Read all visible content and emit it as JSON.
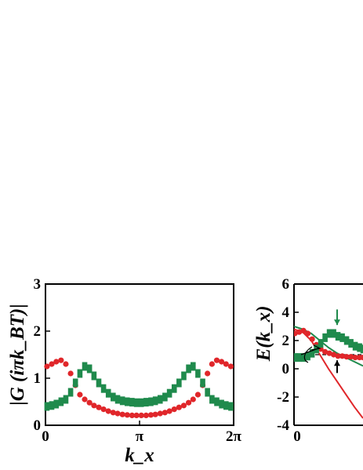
{
  "colors": {
    "red": "#e0262a",
    "green": "#1f8a4c",
    "axis": "#000000"
  },
  "chart_data": [
    {
      "type": "scatter",
      "title": "",
      "xlabel": "k_x",
      "ylabel": "|G (iπk_BT)|",
      "xlim": [
        0,
        6.2832
      ],
      "ylim": [
        0,
        3
      ],
      "grid": false,
      "x_ticks": [
        {
          "value": 0,
          "label": "0"
        },
        {
          "value": 3.1416,
          "label": "π"
        },
        {
          "value": 6.2832,
          "label": "2π"
        }
      ],
      "y_ticks": [
        {
          "value": 0,
          "label": "0"
        },
        {
          "value": 1,
          "label": "1"
        },
        {
          "value": 2,
          "label": "2"
        },
        {
          "value": 3,
          "label": "3"
        }
      ],
      "series": [
        {
          "color": "red",
          "marker": "circle",
          "x": [
            0.05,
            0.21,
            0.36,
            0.52,
            0.68,
            0.84,
            1.0,
            1.15,
            1.31,
            1.47,
            1.62,
            1.78,
            1.94,
            2.1,
            2.26,
            2.41,
            2.57,
            2.73,
            2.89,
            3.04,
            3.2,
            3.36,
            3.52,
            3.67,
            3.83,
            3.99,
            4.14,
            4.3,
            4.46,
            4.62,
            4.78,
            4.93,
            5.09,
            5.25,
            5.41,
            5.56,
            5.72,
            5.88,
            6.03,
            6.19
          ],
          "y": [
            1.25,
            1.3,
            1.35,
            1.38,
            1.3,
            1.1,
            0.85,
            0.65,
            0.55,
            0.48,
            0.42,
            0.38,
            0.34,
            0.3,
            0.27,
            0.25,
            0.23,
            0.22,
            0.21,
            0.21,
            0.21,
            0.21,
            0.22,
            0.23,
            0.25,
            0.27,
            0.3,
            0.34,
            0.38,
            0.42,
            0.48,
            0.55,
            0.65,
            0.85,
            1.1,
            1.3,
            1.38,
            1.35,
            1.3,
            1.25
          ]
        },
        {
          "color": "green",
          "marker": "square",
          "x": [
            0.05,
            0.21,
            0.36,
            0.52,
            0.68,
            0.84,
            1.0,
            1.15,
            1.31,
            1.47,
            1.62,
            1.78,
            1.94,
            2.1,
            2.26,
            2.41,
            2.57,
            2.73,
            2.89,
            3.04,
            3.2,
            3.36,
            3.52,
            3.67,
            3.83,
            3.99,
            4.14,
            4.3,
            4.46,
            4.62,
            4.78,
            4.93,
            5.09,
            5.25,
            5.41,
            5.56,
            5.72,
            5.88,
            6.03,
            6.19
          ],
          "y": [
            0.4,
            0.42,
            0.45,
            0.5,
            0.55,
            0.7,
            0.9,
            1.1,
            1.25,
            1.2,
            1.05,
            0.9,
            0.78,
            0.68,
            0.6,
            0.55,
            0.52,
            0.5,
            0.49,
            0.48,
            0.48,
            0.49,
            0.5,
            0.52,
            0.55,
            0.6,
            0.68,
            0.78,
            0.9,
            1.05,
            1.2,
            1.25,
            1.1,
            0.9,
            0.7,
            0.55,
            0.5,
            0.45,
            0.42,
            0.4
          ]
        }
      ]
    },
    {
      "type": "line",
      "title": "",
      "xlabel": "",
      "ylabel": "E(k_x)",
      "xlim": [
        0,
        1.6
      ],
      "ylim": [
        -4,
        6
      ],
      "grid": false,
      "x_ticks": [
        {
          "value": 0,
          "label": "0"
        }
      ],
      "y_ticks": [
        {
          "value": 6,
          "label": "6"
        },
        {
          "value": 4,
          "label": "4"
        },
        {
          "value": 2,
          "label": "2"
        },
        {
          "value": 0,
          "label": "0"
        },
        {
          "value": -2,
          "label": "-2"
        },
        {
          "value": -4,
          "label": "-4"
        }
      ],
      "reference_line": {
        "y": 1.0,
        "style": "dashed"
      },
      "lines": [
        {
          "color": "green",
          "x": [
            0.0,
            0.2,
            0.4,
            0.6,
            0.8,
            1.0,
            1.2,
            1.4,
            1.6
          ],
          "y": [
            3.0,
            2.8,
            2.5,
            2.0,
            1.5,
            1.1,
            0.8,
            0.5,
            0.2
          ]
        },
        {
          "color": "red",
          "x": [
            0.0,
            0.2,
            0.4,
            0.6,
            0.8,
            1.0,
            1.2,
            1.4,
            1.6
          ],
          "y": [
            2.8,
            2.6,
            2.0,
            1.0,
            0.0,
            -0.9,
            -1.8,
            -2.7,
            -3.5
          ]
        }
      ],
      "series": [
        {
          "color": "red",
          "marker": "circle",
          "x": [
            0.02,
            0.12,
            0.22,
            0.32,
            0.42,
            0.52,
            0.62,
            0.72,
            0.82,
            0.92,
            1.02,
            1.12,
            1.22,
            1.32,
            1.42,
            1.52,
            1.6
          ],
          "y": [
            2.5,
            2.6,
            2.7,
            2.5,
            2.1,
            1.7,
            1.4,
            1.2,
            1.1,
            1.0,
            0.9,
            0.9,
            0.85,
            0.85,
            0.8,
            0.8,
            0.8
          ]
        },
        {
          "color": "green",
          "marker": "square",
          "x": [
            0.02,
            0.12,
            0.22,
            0.32,
            0.42,
            0.52,
            0.62,
            0.72,
            0.82,
            0.92,
            1.02,
            1.12,
            1.22,
            1.32,
            1.42,
            1.52,
            1.6
          ],
          "y": [
            0.8,
            0.8,
            0.8,
            0.9,
            1.1,
            1.4,
            1.8,
            2.2,
            2.5,
            2.5,
            2.3,
            2.2,
            2.0,
            1.8,
            1.6,
            1.5,
            1.4
          ]
        }
      ],
      "arrows": [
        {
          "dir": "down",
          "color": "green",
          "x": 1.0,
          "from": 4.2,
          "to": 3.1
        },
        {
          "dir": "up",
          "color": "black",
          "x": 1.0,
          "from": -0.3,
          "to": 0.6
        }
      ]
    }
  ]
}
